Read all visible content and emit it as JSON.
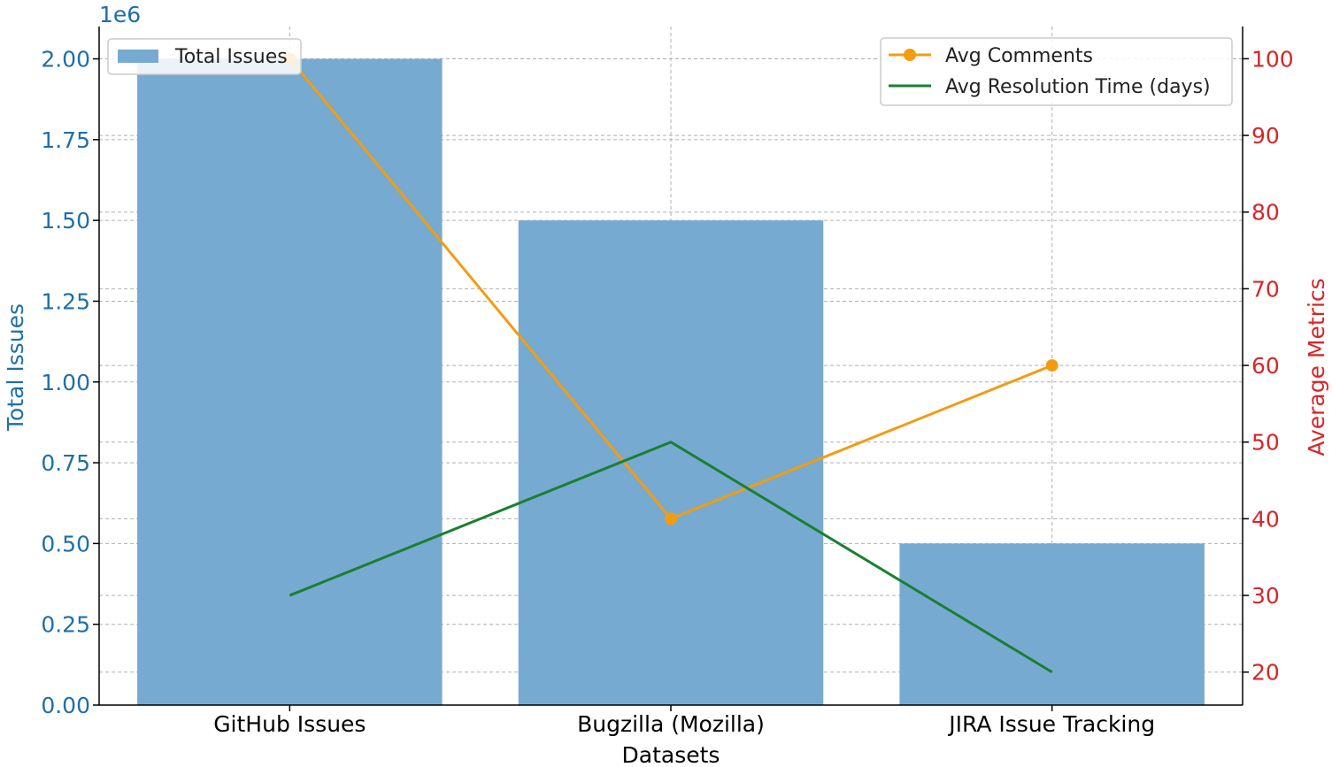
{
  "chart_data": {
    "type": "bar",
    "categories": [
      "GitHub Issues",
      "Bugzilla (Mozilla)",
      "JIRA Issue Tracking"
    ],
    "xlabel": "Datasets",
    "bar_series": {
      "name": "Total Issues",
      "values": [
        2000000,
        1500000,
        500000
      ],
      "color": "#77aad0"
    },
    "left_axis": {
      "label": "Total Issues",
      "color": "#1f6fa8",
      "offset_text": "1e6",
      "range": [
        0,
        2.1
      ],
      "ticks": [
        "0.00",
        "0.25",
        "0.50",
        "0.75",
        "1.00",
        "1.25",
        "1.50",
        "1.75",
        "2.00"
      ]
    },
    "right_axis": {
      "label": "Average Metrics",
      "color": "#d62728",
      "range": [
        15.7,
        104.2
      ],
      "ticks": [
        "20",
        "30",
        "40",
        "50",
        "60",
        "70",
        "80",
        "90",
        "100"
      ]
    },
    "line_series": [
      {
        "name": "Avg Comments",
        "values": [
          100,
          40,
          60
        ],
        "color": "#f39c12",
        "marker": true
      },
      {
        "name": "Avg Resolution Time (days)",
        "values": [
          30,
          50,
          20
        ],
        "color": "#1a7f32",
        "marker": false
      }
    ],
    "legends": {
      "bar": "top-left",
      "lines": "top-right"
    },
    "grid": true
  }
}
